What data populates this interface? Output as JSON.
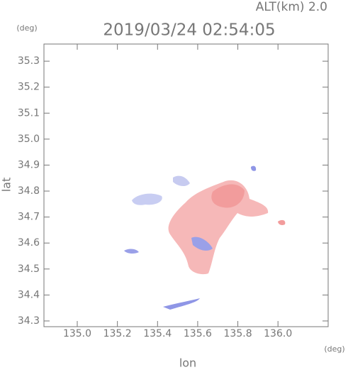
{
  "chart_data": {
    "type": "map",
    "title": "2019/03/24 02:54:05",
    "subtitle": "ALT(km) 2.0",
    "x_label": "lon",
    "y_label": "lat",
    "x_unit": "(deg)",
    "y_unit": "(deg)",
    "xlim": [
      134.834,
      136.25
    ],
    "ylim": [
      34.278,
      35.366
    ],
    "xticks": [
      {
        "value": 135,
        "label": "135.0"
      },
      135.2,
      135.4,
      135.6,
      135.8,
      {
        "value": 136,
        "label": "136.0"
      }
    ],
    "yticks": [
      34.3,
      34.4,
      34.5,
      34.6,
      34.7,
      34.8,
      34.9,
      {
        "value": 35,
        "label": "35.0"
      },
      35.1,
      35.2,
      35.3
    ]
  }
}
